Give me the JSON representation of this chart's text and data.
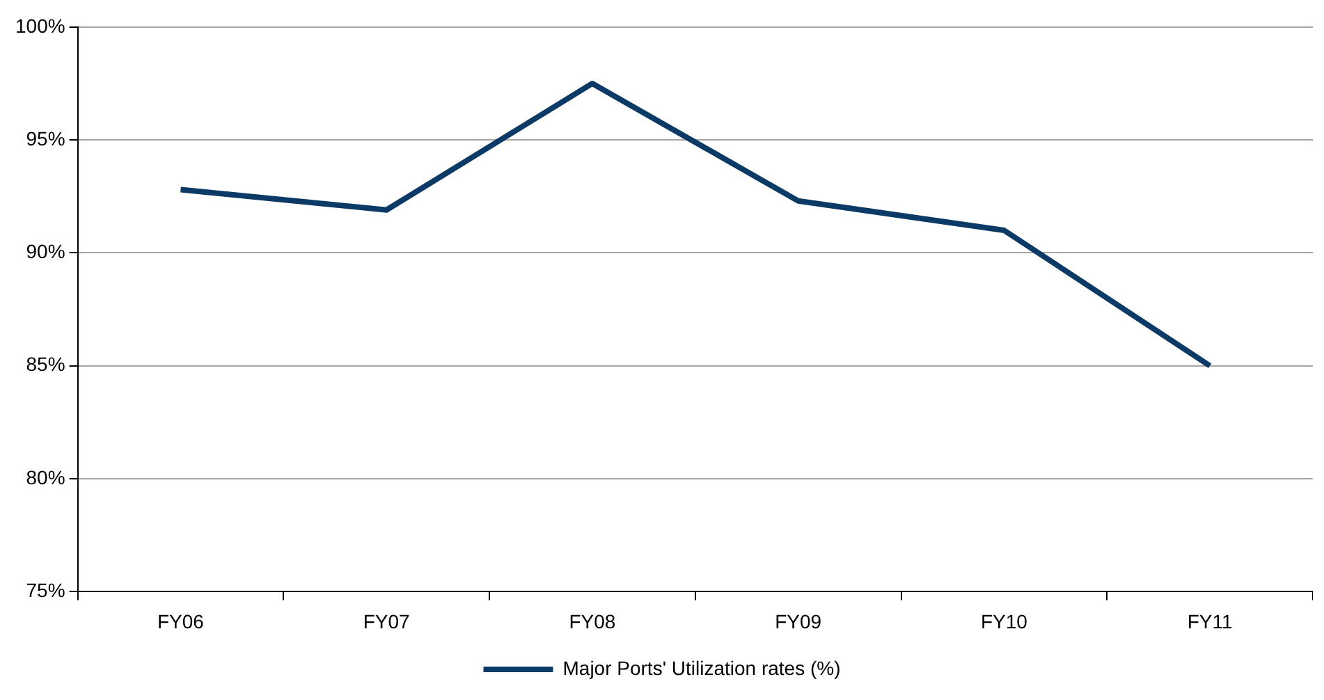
{
  "chart_data": {
    "type": "line",
    "categories": [
      "FY06",
      "FY07",
      "FY08",
      "FY09",
      "FY10",
      "FY11"
    ],
    "series": [
      {
        "name": "Major Ports' Utilization rates (%)",
        "color": "#0b3a66",
        "values": [
          92.8,
          91.9,
          97.5,
          92.3,
          91.0,
          85.0
        ]
      }
    ],
    "ylim": [
      75,
      100
    ],
    "yticks": [
      {
        "value": 75,
        "label": "75%"
      },
      {
        "value": 80,
        "label": "80%"
      },
      {
        "value": 85,
        "label": "85%"
      },
      {
        "value": 90,
        "label": "90%"
      },
      {
        "value": 95,
        "label": "95%"
      },
      {
        "value": 100,
        "label": "100%"
      }
    ],
    "grid": "y",
    "legend": "bottom",
    "marker": "none",
    "line_style": "solid"
  }
}
